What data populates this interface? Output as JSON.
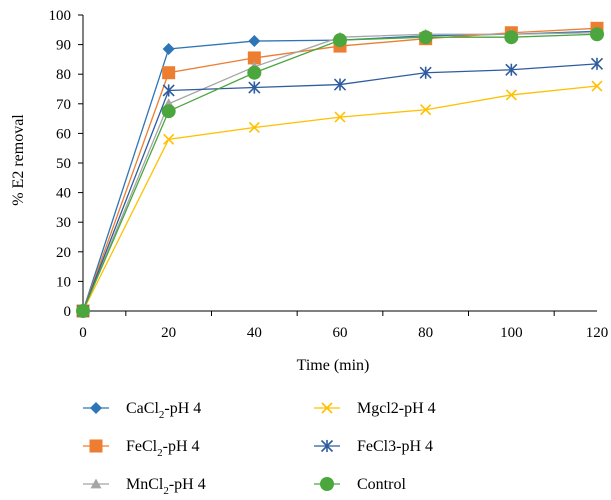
{
  "chart_data": {
    "type": "line",
    "xlabel": "Time (min)",
    "ylabel": "% E2 removal",
    "x": [
      0,
      20,
      40,
      60,
      80,
      100,
      120
    ],
    "xticks": [
      "0",
      "20",
      "40",
      "60",
      "80",
      "100",
      "120"
    ],
    "yticks": [
      "0",
      "10",
      "20",
      "30",
      "40",
      "50",
      "60",
      "70",
      "80",
      "90",
      "100"
    ],
    "xlim": [
      0,
      120
    ],
    "ylim": [
      0,
      100
    ],
    "grid": false,
    "legend_position": "bottom",
    "series": [
      {
        "key": "cacl2",
        "name_main": "CaCl",
        "name_sub": "2",
        "name_tail": "-pH 4",
        "color": "#2E75B6",
        "marker": "diamond",
        "values": [
          0,
          88.5,
          91.2,
          91.5,
          93.0,
          93.5,
          94.5
        ]
      },
      {
        "key": "fecl2",
        "name_main": "FeCl",
        "name_sub": "2",
        "name_tail": "-pH 4",
        "color": "#ED7D31",
        "marker": "square",
        "values": [
          0,
          80.5,
          85.5,
          89.5,
          92.0,
          94.0,
          95.5
        ]
      },
      {
        "key": "mncl2",
        "name_main": "MnCl",
        "name_sub": "2",
        "name_tail": "-pH 4",
        "color": "#A5A5A5",
        "marker": "triangle",
        "values": [
          0,
          70.0,
          82.5,
          92.5,
          93.5,
          93.5,
          94.0
        ]
      },
      {
        "key": "mgcl2",
        "name_main": "Mgcl2-pH 4",
        "name_sub": "",
        "name_tail": "",
        "color": "#FFC000",
        "marker": "x",
        "values": [
          0,
          58.0,
          62.0,
          65.5,
          68.0,
          73.0,
          76.0
        ]
      },
      {
        "key": "fecl3",
        "name_main": "FeCl3-pH 4",
        "name_sub": "",
        "name_tail": "",
        "color": "#2E5C9E",
        "marker": "star",
        "values": [
          0,
          74.5,
          75.5,
          76.5,
          80.5,
          81.5,
          83.5
        ]
      },
      {
        "key": "control",
        "name_main": "Control",
        "name_sub": "",
        "name_tail": "",
        "color": "#4AA63D",
        "marker": "circle",
        "values": [
          0,
          67.5,
          80.5,
          91.5,
          92.5,
          92.5,
          93.5
        ]
      }
    ]
  }
}
